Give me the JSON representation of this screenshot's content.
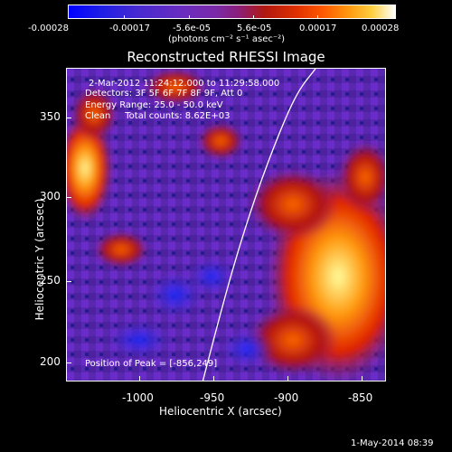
{
  "colorbar": {
    "ticks": [
      "-0.00028",
      "-0.00017",
      "-5.6e-05",
      "5.6e-05",
      "0.00017",
      "0.00028"
    ],
    "unit": "(photons cm⁻² s⁻¹ asec⁻²)"
  },
  "title": "Reconstructed RHESSI Image",
  "annotations": {
    "time": "2-Mar-2012 11:24:12.000 to 11:29:58.000",
    "detectors": "Detectors: 3F 5F 6F 7F 8F 9F, Att 0",
    "energy": "Energy Range: 25.0 - 50.0 keV",
    "clean": "Clean     Total counts: 8.62E+03",
    "peak": "Position of Peak = [-856,249]"
  },
  "axes": {
    "xlabel": "Heliocentric X (arcsec)",
    "ylabel": "Heliocentric Y (arcsec)",
    "xticks": [
      "-1000",
      "-950",
      "-900",
      "-850"
    ],
    "yticks": [
      "350",
      "300",
      "250",
      "200"
    ]
  },
  "footer": "1-May-2014 08:39"
}
